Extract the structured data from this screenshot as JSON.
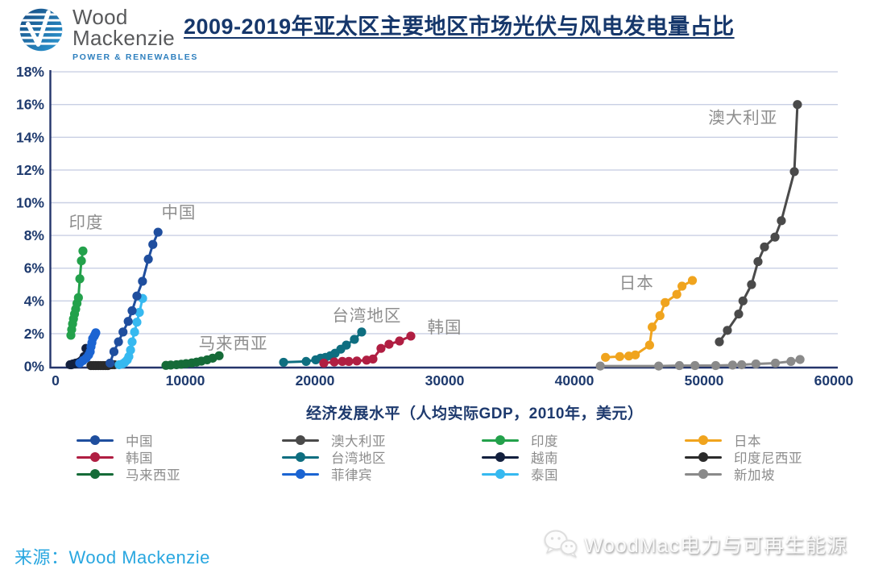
{
  "header": {
    "logo": {
      "line1": "Wood",
      "line2": "Mackenzie",
      "tagline": "POWER & RENEWABLES"
    },
    "title": "2009-2019年亚太区主要地区市场光伏与风电发电量占比"
  },
  "chart_data": {
    "type": "line",
    "title": "2009-2019年亚太区主要地区市场光伏与风电发电量占比",
    "xlabel": "经济发展水平（人均实际GDP，2010年，美元）",
    "ylabel": "",
    "xlim": [
      0,
      60000
    ],
    "ylim": [
      0,
      18
    ],
    "xticks": [
      0,
      10000,
      20000,
      30000,
      40000,
      50000,
      60000
    ],
    "ytick_labels": [
      "0%",
      "2%",
      "4%",
      "6%",
      "8%",
      "10%",
      "12%",
      "14%",
      "16%",
      "18%"
    ],
    "grid": true,
    "legend_position": "bottom",
    "axis_color": "#24356B",
    "grid_color": "#C9CFE4",
    "tick_label_color": "#1E3A6E",
    "annotation_color": "#8E8E8E",
    "series": [
      {
        "name": "新加坡",
        "color": "#8A8A8A",
        "x": [
          42000,
          46500,
          48100,
          49300,
          50900,
          52200,
          52900,
          54000,
          55500,
          56700,
          57400
        ],
        "y": [
          0.02,
          0.02,
          0.05,
          0.05,
          0.05,
          0.08,
          0.1,
          0.15,
          0.2,
          0.3,
          0.42
        ]
      },
      {
        "name": "印度尼西亚",
        "color": "#2B2B2B",
        "x": [
          2730,
          2920,
          3100,
          3290,
          3480,
          3660,
          3850,
          4030,
          4220,
          4350,
          4530
        ],
        "y": [
          0.05,
          0.05,
          0.05,
          0.05,
          0.05,
          0.05,
          0.05,
          0.05,
          0.1,
          0.1,
          0.1
        ]
      },
      {
        "name": "越南",
        "color": "#13203E",
        "x": [
          1120,
          1230,
          1340,
          1450,
          1560,
          1680,
          1800,
          1930,
          2060,
          2200,
          2340
        ],
        "y": [
          0.1,
          0.1,
          0.15,
          0.15,
          0.2,
          0.2,
          0.25,
          0.3,
          0.4,
          0.6,
          1.1
        ]
      },
      {
        "name": "菲律宾",
        "color": "#1B64D2",
        "x": [
          1860,
          2110,
          2360,
          2550,
          2670,
          2730,
          2800,
          2860,
          2980,
          3040,
          3100
        ],
        "y": [
          0.2,
          0.35,
          0.5,
          0.7,
          0.9,
          1.2,
          1.45,
          1.7,
          1.85,
          1.95,
          2.05
        ]
      },
      {
        "name": "泰国",
        "color": "#36B9F0",
        "x": [
          4900,
          5160,
          5340,
          5530,
          5650,
          5780,
          5900,
          6090,
          6270,
          6460,
          6710
        ],
        "y": [
          0.1,
          0.15,
          0.25,
          0.4,
          0.6,
          1.0,
          1.5,
          2.1,
          2.7,
          3.3,
          4.15
        ]
      },
      {
        "name": "马来西亚",
        "color": "#156B38",
        "x": [
          8510,
          8880,
          9320,
          9690,
          10060,
          10500,
          10870,
          11240,
          11680,
          12110,
          12610
        ],
        "y": [
          0.06,
          0.08,
          0.1,
          0.13,
          0.17,
          0.21,
          0.26,
          0.32,
          0.4,
          0.5,
          0.65
        ]
      },
      {
        "name": "印度",
        "color": "#23A14B",
        "x": [
          1180,
          1240,
          1310,
          1380,
          1460,
          1550,
          1650,
          1760,
          1870,
          1990,
          2110
        ],
        "y": [
          1.9,
          2.25,
          2.6,
          2.9,
          3.2,
          3.5,
          3.85,
          4.2,
          5.35,
          6.45,
          7.05
        ]
      },
      {
        "name": "中国",
        "color": "#1F4E9E",
        "x": [
          4200,
          4500,
          4850,
          5200,
          5600,
          5900,
          6270,
          6700,
          7150,
          7500,
          7900
        ],
        "y": [
          0.2,
          0.9,
          1.5,
          2.1,
          2.75,
          3.4,
          4.3,
          5.2,
          6.55,
          7.45,
          8.2
        ]
      },
      {
        "name": "台湾地区",
        "color": "#0E6E80",
        "x": [
          17580,
          19320,
          20060,
          20430,
          20810,
          21180,
          21550,
          21990,
          22420,
          23040,
          23600
        ],
        "y": [
          0.25,
          0.3,
          0.4,
          0.5,
          0.55,
          0.65,
          0.8,
          1.05,
          1.3,
          1.65,
          2.1
        ]
      },
      {
        "name": "韩国",
        "color": "#B01E42",
        "x": [
          20680,
          21490,
          22110,
          22610,
          23230,
          23980,
          24470,
          25090,
          25710,
          26520,
          27390
        ],
        "y": [
          0.2,
          0.27,
          0.3,
          0.3,
          0.33,
          0.38,
          0.45,
          1.1,
          1.35,
          1.55,
          1.85
        ]
      },
      {
        "name": "日本",
        "color": "#F0A41E",
        "x": [
          42400,
          43500,
          44200,
          44700,
          45800,
          46000,
          46600,
          47000,
          47900,
          48300,
          49100
        ],
        "y": [
          0.55,
          0.6,
          0.63,
          0.7,
          1.3,
          2.4,
          3.1,
          3.9,
          4.4,
          4.9,
          5.25
        ]
      },
      {
        "name": "澳大利亚",
        "color": "#4A4A4A",
        "x": [
          51180,
          51800,
          52670,
          53000,
          53660,
          54160,
          54660,
          55470,
          55960,
          56960,
          57200
        ],
        "y": [
          1.5,
          2.2,
          3.2,
          4.0,
          5.0,
          6.4,
          7.3,
          7.9,
          8.9,
          11.9,
          16.0
        ]
      }
    ],
    "annotations": [
      {
        "text": "印度",
        "x": 2360,
        "y": 8.8
      },
      {
        "text": "中国",
        "x": 9500,
        "y": 9.4
      },
      {
        "text": "马来西亚",
        "x": 13700,
        "y": 1.4
      },
      {
        "text": "台湾地区",
        "x": 24000,
        "y": 3.1
      },
      {
        "text": "韩国",
        "x": 30000,
        "y": 2.4
      },
      {
        "text": "日本",
        "x": 44800,
        "y": 5.1
      },
      {
        "text": "澳大利亚",
        "x": 53000,
        "y": 15.2
      }
    ]
  },
  "legend": {
    "columns": [
      [
        {
          "label": "中国",
          "color": "#1F4E9E"
        },
        {
          "label": "韩国",
          "color": "#B01E42"
        },
        {
          "label": "马来西亚",
          "color": "#156B38"
        }
      ],
      [
        {
          "label": "澳大利亚",
          "color": "#4A4A4A"
        },
        {
          "label": "台湾地区",
          "color": "#0E6E80"
        },
        {
          "label": "菲律宾",
          "color": "#1B64D2"
        }
      ],
      [
        {
          "label": "印度",
          "color": "#23A14B"
        },
        {
          "label": "越南",
          "color": "#13203E"
        },
        {
          "label": "泰国",
          "color": "#36B9F0"
        }
      ],
      [
        {
          "label": "日本",
          "color": "#F0A41E"
        },
        {
          "label": "印度尼西亚",
          "color": "#2B2B2B"
        },
        {
          "label": "新加坡",
          "color": "#8A8A8A"
        }
      ]
    ]
  },
  "footer": {
    "source_label": "来源：",
    "source_value": "Wood Mackenzie"
  },
  "watermark": {
    "text": "WoodMac电力与可再生能源"
  }
}
